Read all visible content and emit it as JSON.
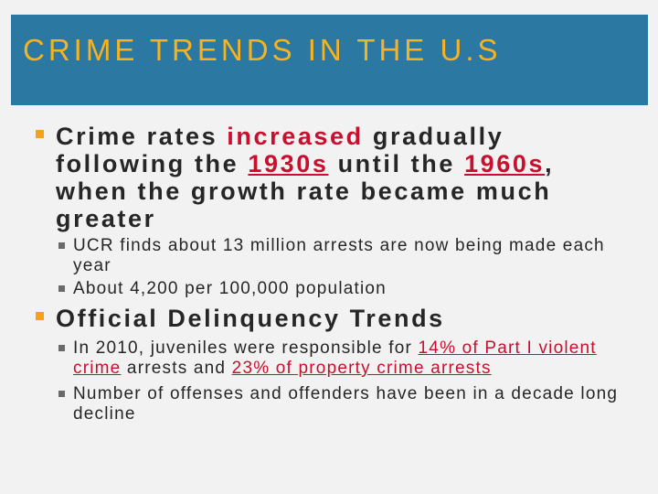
{
  "slide": {
    "title": "CRIME TRENDS IN THE U.S",
    "bullet1": {
      "part1": "Crime rates ",
      "highlight1": "increased",
      "part2": " gradually following the ",
      "highlight2": "1930s",
      "part3": " until the ",
      "highlight3": "1960s",
      "part4": ", when the growth rate became much greater",
      "subitems": [
        "UCR finds about 13 million arrests are now being made each year",
        "About 4,200 per 100,000 population"
      ]
    },
    "bullet2": {
      "text": "Official Delinquency Trends",
      "sub1": {
        "part1": "In 2010, juveniles were responsible for ",
        "highlight1": "14% of Part I violent crime",
        "part2": " arrests and ",
        "highlight2": "23% of property crime arrests"
      },
      "sub2": "Number of offenses and offenders have been in a decade long decline"
    }
  },
  "colors": {
    "title_bar": "#2b78a2",
    "title_text": "#f6b31f",
    "body_text": "#262626",
    "highlight": "#c8102e",
    "bullet_marker": "#f6a21f",
    "background": "#f2f2f2"
  }
}
